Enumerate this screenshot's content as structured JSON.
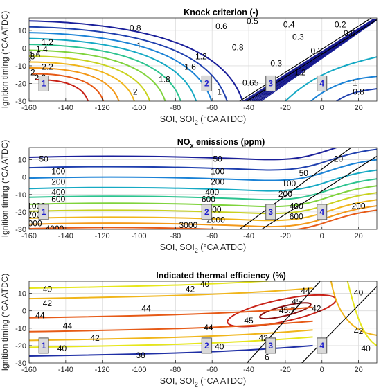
{
  "figure": {
    "background": "#ffffff",
    "grid_color": "#dcdcdc",
    "frame_color": "#262626",
    "region_marker_fill": "#d9d9d9",
    "region_text_color": "#1f1fcc"
  },
  "chart_data": [
    {
      "type": "contour",
      "title": "Knock criterion (-)",
      "xlabel": "SOI, SOI",
      "xlabel_sub": "2",
      "xlabel_tail": " (°CA ATDC)",
      "ylabel": "Ignition timing (°CA ATDC)",
      "xlim": [
        -160,
        30
      ],
      "ylim": [
        -30,
        17
      ],
      "x_ticks": [
        -160,
        -140,
        -120,
        -100,
        -80,
        -60,
        -40,
        -20,
        0,
        20
      ],
      "y_ticks": [
        -30,
        -20,
        -10,
        0,
        10
      ],
      "grid": true,
      "contour_labels": [
        {
          "text": "0.8",
          "x": -102,
          "y": 11,
          "color": "#1f3fae"
        },
        {
          "text": "0.6",
          "x": -55,
          "y": 12,
          "color": "#1a1f9a"
        },
        {
          "text": "0.5",
          "x": -38,
          "y": 15,
          "color": "#12147d"
        },
        {
          "text": "0.4",
          "x": -18,
          "y": 13,
          "color": "#12147d"
        },
        {
          "text": "1",
          "x": -100,
          "y": 1,
          "color": "#1a82d6"
        },
        {
          "text": "0.8",
          "x": -46,
          "y": 0,
          "color": "#1f3fae"
        },
        {
          "text": "1.2",
          "x": -150,
          "y": 3,
          "color": "#15a9c4"
        },
        {
          "text": "1.4",
          "x": -153,
          "y": -1,
          "color": "#2cc38f"
        },
        {
          "text": "1.6",
          "x": -157,
          "y": -4,
          "color": "#7fd33c"
        },
        {
          "text": "1.8",
          "x": -160,
          "y": -5,
          "color": "#c8d21f"
        },
        {
          "text": "2",
          "x": -160,
          "y": -8,
          "color": "#f0b51a"
        },
        {
          "text": "2.2",
          "x": -150,
          "y": -11,
          "color": "#f39818"
        },
        {
          "text": "2",
          "x": -158,
          "y": -14,
          "color": "#f0b51a"
        },
        {
          "text": "2.2",
          "x": -154,
          "y": -17,
          "color": "#f39818"
        },
        {
          "text": "1.2",
          "x": -66,
          "y": -5,
          "color": "#15a9c4"
        },
        {
          "text": "1.6",
          "x": -72,
          "y": -11,
          "color": "#7fd33c"
        },
        {
          "text": "1.8",
          "x": -86,
          "y": -18,
          "color": "#c8d21f"
        },
        {
          "text": "2",
          "x": -102,
          "y": -25,
          "color": "#f0b51a"
        },
        {
          "text": "1",
          "x": -56,
          "y": -25,
          "color": "#1a82d6"
        },
        {
          "text": "0.65",
          "x": -39,
          "y": -20,
          "color": "#1f2fa5"
        },
        {
          "text": "0.3",
          "x": -25,
          "y": -9,
          "color": "#12147d"
        },
        {
          "text": "0.3",
          "x": -13,
          "y": 6,
          "color": "#12147d"
        },
        {
          "text": "0.2",
          "x": -3,
          "y": -2,
          "color": "#12147d"
        },
        {
          "text": "0.2",
          "x": 10,
          "y": 13,
          "color": "#12147d"
        },
        {
          "text": "0.6",
          "x": 15,
          "y": 8,
          "color": "#1a1f9a"
        },
        {
          "text": "1.2",
          "x": -12,
          "y": -14,
          "color": "#15a9c4"
        },
        {
          "text": "1",
          "x": 18,
          "y": -20,
          "color": "#1a82d6"
        },
        {
          "text": "0.8",
          "x": 20,
          "y": -25,
          "color": "#1f3fae"
        }
      ],
      "diagonal_lines": [
        [
          [
            -45,
            -30
          ],
          [
            27,
            17
          ]
        ],
        [
          [
            -41,
            -30
          ],
          [
            30,
            16
          ]
        ]
      ],
      "regions": [
        {
          "label": "1",
          "x": -152,
          "y": -20
        },
        {
          "label": "2",
          "x": -63,
          "y": -20
        },
        {
          "label": "3",
          "x": -28,
          "y": -20
        },
        {
          "label": "4",
          "x": 0,
          "y": -20
        }
      ]
    },
    {
      "type": "contour",
      "title_main": "NO",
      "title_sub": "x",
      "title_tail": " emissions (ppm)",
      "xlabel": "SOI, SOI",
      "xlabel_sub": "2",
      "xlabel_tail": " (°CA ATDC)",
      "ylabel": "Ignition timing (°CA ATDC)",
      "xlim": [
        -160,
        30
      ],
      "ylim": [
        -30,
        17
      ],
      "x_ticks": [
        -160,
        -140,
        -120,
        -100,
        -80,
        -60,
        -40,
        -20,
        0,
        20
      ],
      "y_ticks": [
        -30,
        -20,
        -10,
        0,
        10
      ],
      "grid": true,
      "contour_labels": [
        {
          "text": "50",
          "x": -152,
          "y": 10,
          "color": "#12147d"
        },
        {
          "text": "50",
          "x": -57,
          "y": 10,
          "color": "#12147d"
        },
        {
          "text": "100",
          "x": -144,
          "y": 3,
          "color": "#1a1f9a"
        },
        {
          "text": "100",
          "x": -57,
          "y": 3,
          "color": "#1a1f9a"
        },
        {
          "text": "200",
          "x": -144,
          "y": -3,
          "color": "#1f3fae"
        },
        {
          "text": "200",
          "x": -57,
          "y": -3,
          "color": "#1f3fae"
        },
        {
          "text": "400",
          "x": -144,
          "y": -9,
          "color": "#1a82d6"
        },
        {
          "text": "400",
          "x": -60,
          "y": -9,
          "color": "#1a82d6"
        },
        {
          "text": "600",
          "x": -144,
          "y": -13,
          "color": "#15a9c4"
        },
        {
          "text": "600",
          "x": -62,
          "y": -13,
          "color": "#15a9c4"
        },
        {
          "text": "1000",
          "x": -156,
          "y": -17,
          "color": "#2cc38f"
        },
        {
          "text": "1000",
          "x": -60,
          "y": -19,
          "color": "#2cc38f"
        },
        {
          "text": "2000",
          "x": -156,
          "y": -22,
          "color": "#c8d21f"
        },
        {
          "text": "2000",
          "x": -58,
          "y": -25,
          "color": "#c8d21f"
        },
        {
          "text": "3000",
          "x": -158,
          "y": -27,
          "color": "#f0b51a"
        },
        {
          "text": "3000",
          "x": -73,
          "y": -28,
          "color": "#f0b51a"
        },
        {
          "text": "4000",
          "x": -146,
          "y": -30,
          "color": "#c82117"
        },
        {
          "text": "20",
          "x": 9,
          "y": 10,
          "color": "#0d0f66"
        },
        {
          "text": "50",
          "x": -10,
          "y": 2,
          "color": "#12147d"
        },
        {
          "text": "100",
          "x": -18,
          "y": -4,
          "color": "#1a1f9a"
        },
        {
          "text": "200",
          "x": -20,
          "y": -10,
          "color": "#1f3fae"
        },
        {
          "text": "400",
          "x": -14,
          "y": -17,
          "color": "#1a82d6"
        },
        {
          "text": "600",
          "x": -14,
          "y": -23,
          "color": "#15a9c4"
        },
        {
          "text": "200",
          "x": 20,
          "y": -17,
          "color": "#1f3fae"
        }
      ],
      "diagonal_lines": [
        [
          [
            -45,
            -30
          ],
          [
            16,
            17
          ]
        ],
        [
          [
            -33,
            -30
          ],
          [
            30,
            12
          ]
        ]
      ],
      "regions": [
        {
          "label": "1",
          "x": -152,
          "y": -20
        },
        {
          "label": "2",
          "x": -63,
          "y": -20
        },
        {
          "label": "3",
          "x": -28,
          "y": -20
        },
        {
          "label": "4",
          "x": 0,
          "y": -20
        }
      ]
    },
    {
      "type": "contour",
      "title": "Indicated thermal efficiency (%)",
      "xlabel": "SOI, SOI",
      "xlabel_sub": "2",
      "xlabel_tail": " (°CA ATDC)",
      "ylabel": "Ignition timing (°CA ATDC)",
      "xlim": [
        -160,
        30
      ],
      "ylim": [
        -30,
        17
      ],
      "x_ticks": [
        -160,
        -140,
        -120,
        -100,
        -80,
        -60,
        -40,
        -20,
        0,
        20
      ],
      "y_ticks": [
        -30,
        -20,
        -10,
        0,
        10
      ],
      "grid": true,
      "contour_labels": [
        {
          "text": "40",
          "x": -150,
          "y": 12,
          "color": "#e6e61a"
        },
        {
          "text": "40",
          "x": -64,
          "y": 15,
          "color": "#e6e61a"
        },
        {
          "text": "42",
          "x": -150,
          "y": 4,
          "color": "#f0b51a"
        },
        {
          "text": "42",
          "x": -72,
          "y": 12,
          "color": "#f0b51a"
        },
        {
          "text": "44",
          "x": -154,
          "y": -3,
          "color": "#e65a17"
        },
        {
          "text": "44",
          "x": -96,
          "y": 1,
          "color": "#e65a17"
        },
        {
          "text": "44",
          "x": -139,
          "y": -9,
          "color": "#e65a17"
        },
        {
          "text": "44",
          "x": -62,
          "y": -10,
          "color": "#e65a17"
        },
        {
          "text": "45",
          "x": -14,
          "y": 5,
          "color": "#c82117"
        },
        {
          "text": "45.7",
          "x": -19,
          "y": 0,
          "color": "#8b0f0f"
        },
        {
          "text": "45",
          "x": -40,
          "y": -6,
          "color": "#c82117"
        },
        {
          "text": "44",
          "x": -9,
          "y": 11,
          "color": "#e65a17"
        },
        {
          "text": "42",
          "x": -124,
          "y": -16,
          "color": "#f0b51a"
        },
        {
          "text": "42",
          "x": -32,
          "y": -16,
          "color": "#f0b51a"
        },
        {
          "text": "40",
          "x": -142,
          "y": -22,
          "color": "#e6e61a"
        },
        {
          "text": "40",
          "x": -56,
          "y": -21,
          "color": "#e6e61a"
        },
        {
          "text": "38",
          "x": -99,
          "y": -26,
          "color": "#1f2fa5"
        },
        {
          "text": "40",
          "x": 20,
          "y": 10,
          "color": "#e6e61a"
        },
        {
          "text": "42",
          "x": 20,
          "y": -12,
          "color": "#f0b51a"
        },
        {
          "text": "40",
          "x": 24,
          "y": -22,
          "color": "#e6e61a"
        },
        {
          "text": "42",
          "x": -3,
          "y": 1,
          "color": "#f0b51a"
        },
        {
          "text": "6",
          "x": -30,
          "y": -27,
          "color": "#12147d"
        }
      ],
      "diagonal_lines": [
        [
          [
            -41,
            -30
          ],
          [
            -1,
            17
          ]
        ],
        [
          [
            -11,
            -30
          ],
          [
            30,
            14
          ]
        ]
      ],
      "regions": [
        {
          "label": "1",
          "x": -152,
          "y": -20
        },
        {
          "label": "2",
          "x": -63,
          "y": -20
        },
        {
          "label": "3",
          "x": -28,
          "y": -20
        },
        {
          "label": "4",
          "x": 0,
          "y": -20
        }
      ]
    }
  ]
}
